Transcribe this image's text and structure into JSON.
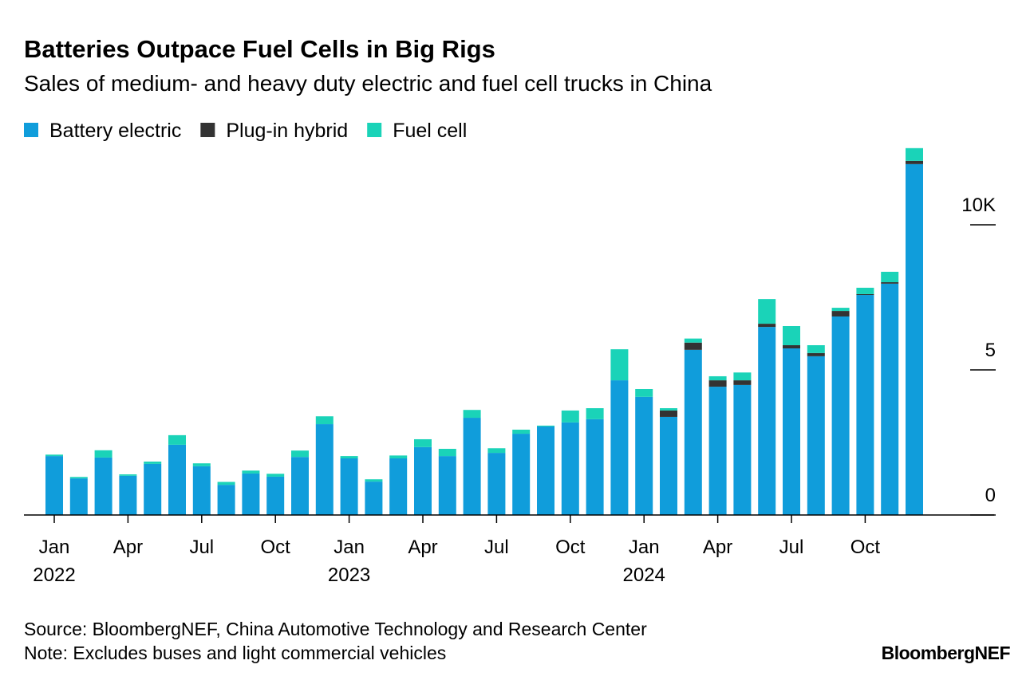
{
  "chart_data": {
    "type": "stacked_bar",
    "title": "Batteries Outpace Fuel Cells in Big Rigs",
    "subtitle": "Sales of medium- and heavy duty electric and fuel cell trucks in China",
    "source": "Source: BloombergNEF, China Automotive Technology and Research Center",
    "note": "Note: Excludes buses and light commercial vehicles",
    "brand": "BloombergNEF",
    "categories": [
      "Jan",
      null,
      null,
      "Apr",
      null,
      null,
      "Jul",
      null,
      null,
      "Oct",
      null,
      null,
      "Jan",
      null,
      null,
      "Apr",
      null,
      null,
      "Jul",
      null,
      null,
      "Oct",
      null,
      null,
      "Jan",
      null,
      null,
      "Apr",
      null,
      null,
      "Jul",
      null,
      null,
      "Oct",
      null,
      null
    ],
    "year_labels": [
      "2022",
      "2023",
      "2024"
    ],
    "series": [
      {
        "name": "Battery electric",
        "color": "#109ddb",
        "values": [
          2.03,
          1.26,
          1.98,
          1.35,
          1.76,
          2.42,
          1.68,
          1.04,
          1.43,
          1.32,
          2.0,
          3.13,
          1.95,
          1.15,
          1.95,
          2.34,
          2.03,
          3.35,
          2.14,
          2.8,
          3.05,
          3.19,
          3.3,
          4.64,
          4.07,
          3.38,
          5.69,
          4.42,
          4.48,
          6.48,
          5.74,
          5.47,
          6.84,
          7.58,
          7.97,
          12.09
        ]
      },
      {
        "name": "Plug-in hybrid",
        "color": "#333333",
        "values": [
          0,
          0,
          0,
          0,
          0,
          0,
          0,
          0,
          0,
          0,
          0,
          0,
          0,
          0,
          0,
          0,
          0,
          0,
          0,
          0,
          0,
          0,
          0,
          0,
          0,
          0.22,
          0.25,
          0.22,
          0.16,
          0.11,
          0.11,
          0.11,
          0.19,
          0.03,
          0.05,
          0.11
        ]
      },
      {
        "name": "Fuel cell",
        "color": "#1ad3b8",
        "values": [
          0.05,
          0.05,
          0.25,
          0.05,
          0.08,
          0.33,
          0.1,
          0.1,
          0.1,
          0.1,
          0.22,
          0.27,
          0.08,
          0.08,
          0.1,
          0.27,
          0.25,
          0.27,
          0.16,
          0.14,
          0.03,
          0.41,
          0.38,
          1.07,
          0.27,
          0.08,
          0.14,
          0.14,
          0.27,
          0.85,
          0.66,
          0.27,
          0.11,
          0.22,
          0.36,
          0.44
        ]
      }
    ],
    "ylim": [
      0,
      12.8
    ],
    "yticks": [
      0,
      5,
      {
        "value": 10,
        "label": "10K"
      }
    ]
  }
}
